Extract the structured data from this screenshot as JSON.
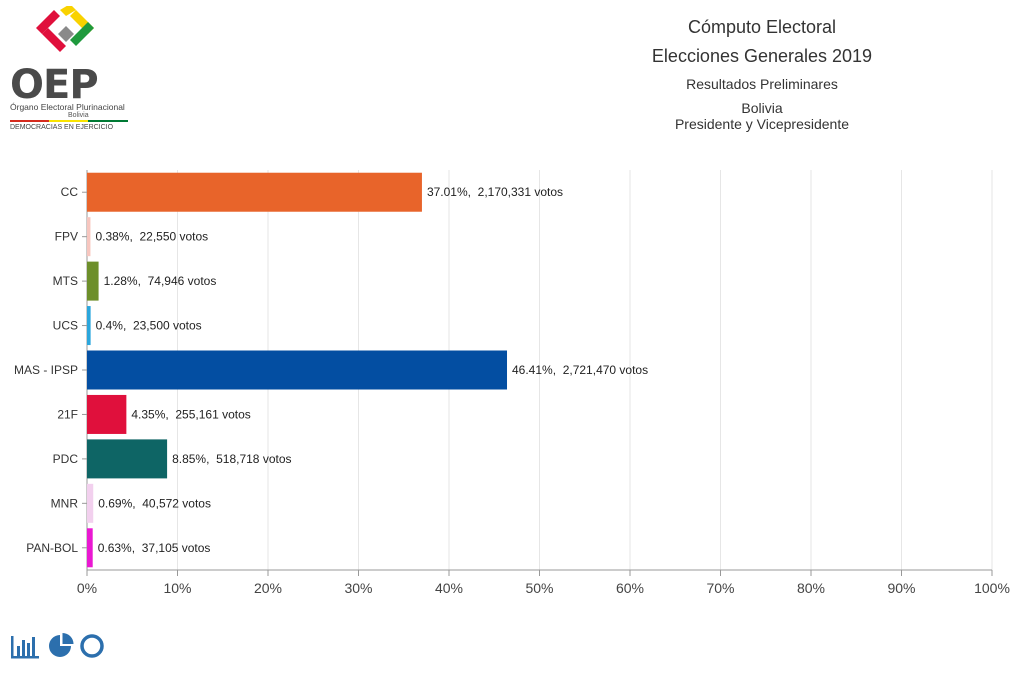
{
  "logo": {
    "acronym": "OEP",
    "line1": "Órgano Electoral Plurinacional",
    "line2": "Bolivia",
    "line3": "DEMOCRACIAS EN EJERCICIO"
  },
  "header": {
    "title": "Cómputo Electoral",
    "subtitle": "Elecciones Generales 2019",
    "status": "Resultados Preliminares",
    "region": "Bolivia",
    "office": "Presidente y Vicepresidente"
  },
  "chart_data": {
    "type": "bar",
    "orientation": "horizontal",
    "categories": [
      "CC",
      "FPV",
      "MTS",
      "UCS",
      "MAS - IPSP",
      "21F",
      "PDC",
      "MNR",
      "PAN-BOL"
    ],
    "values": [
      37.01,
      0.38,
      1.28,
      0.4,
      46.41,
      4.35,
      8.85,
      0.69,
      0.63
    ],
    "votes": [
      2170331,
      22550,
      74946,
      23500,
      2721470,
      255161,
      518718,
      40572,
      37105
    ],
    "data_labels": [
      "37.01%,  2,170,331 votos",
      "0.38%,  22,550 votos",
      "1.28%,  74,946 votos",
      "0.4%,  23,500 votos",
      "46.41%,  2,721,470 votos",
      "4.35%,  255,161 votos",
      "8.85%,  518,718 votos",
      "0.69%,  40,572 votos",
      "0.63%,  37,105 votos"
    ],
    "colors": [
      "#e8642a",
      "#f7c6bf",
      "#6d8f2a",
      "#2aa6dc",
      "#034ea2",
      "#e0103c",
      "#0e6565",
      "#f2d0ee",
      "#ea18d2"
    ],
    "xlim": [
      0,
      100
    ],
    "xticks": [
      "0%",
      "10%",
      "20%",
      "30%",
      "40%",
      "50%",
      "60%",
      "70%",
      "80%",
      "90%",
      "100%"
    ],
    "grid": true
  },
  "toolbar": {
    "buttons": [
      {
        "name": "bar-chart-icon",
        "color": "#2c6fad"
      },
      {
        "name": "pie-chart-icon",
        "color": "#2c6fad"
      },
      {
        "name": "donut-chart-icon",
        "color": "#2c6fad"
      }
    ]
  }
}
